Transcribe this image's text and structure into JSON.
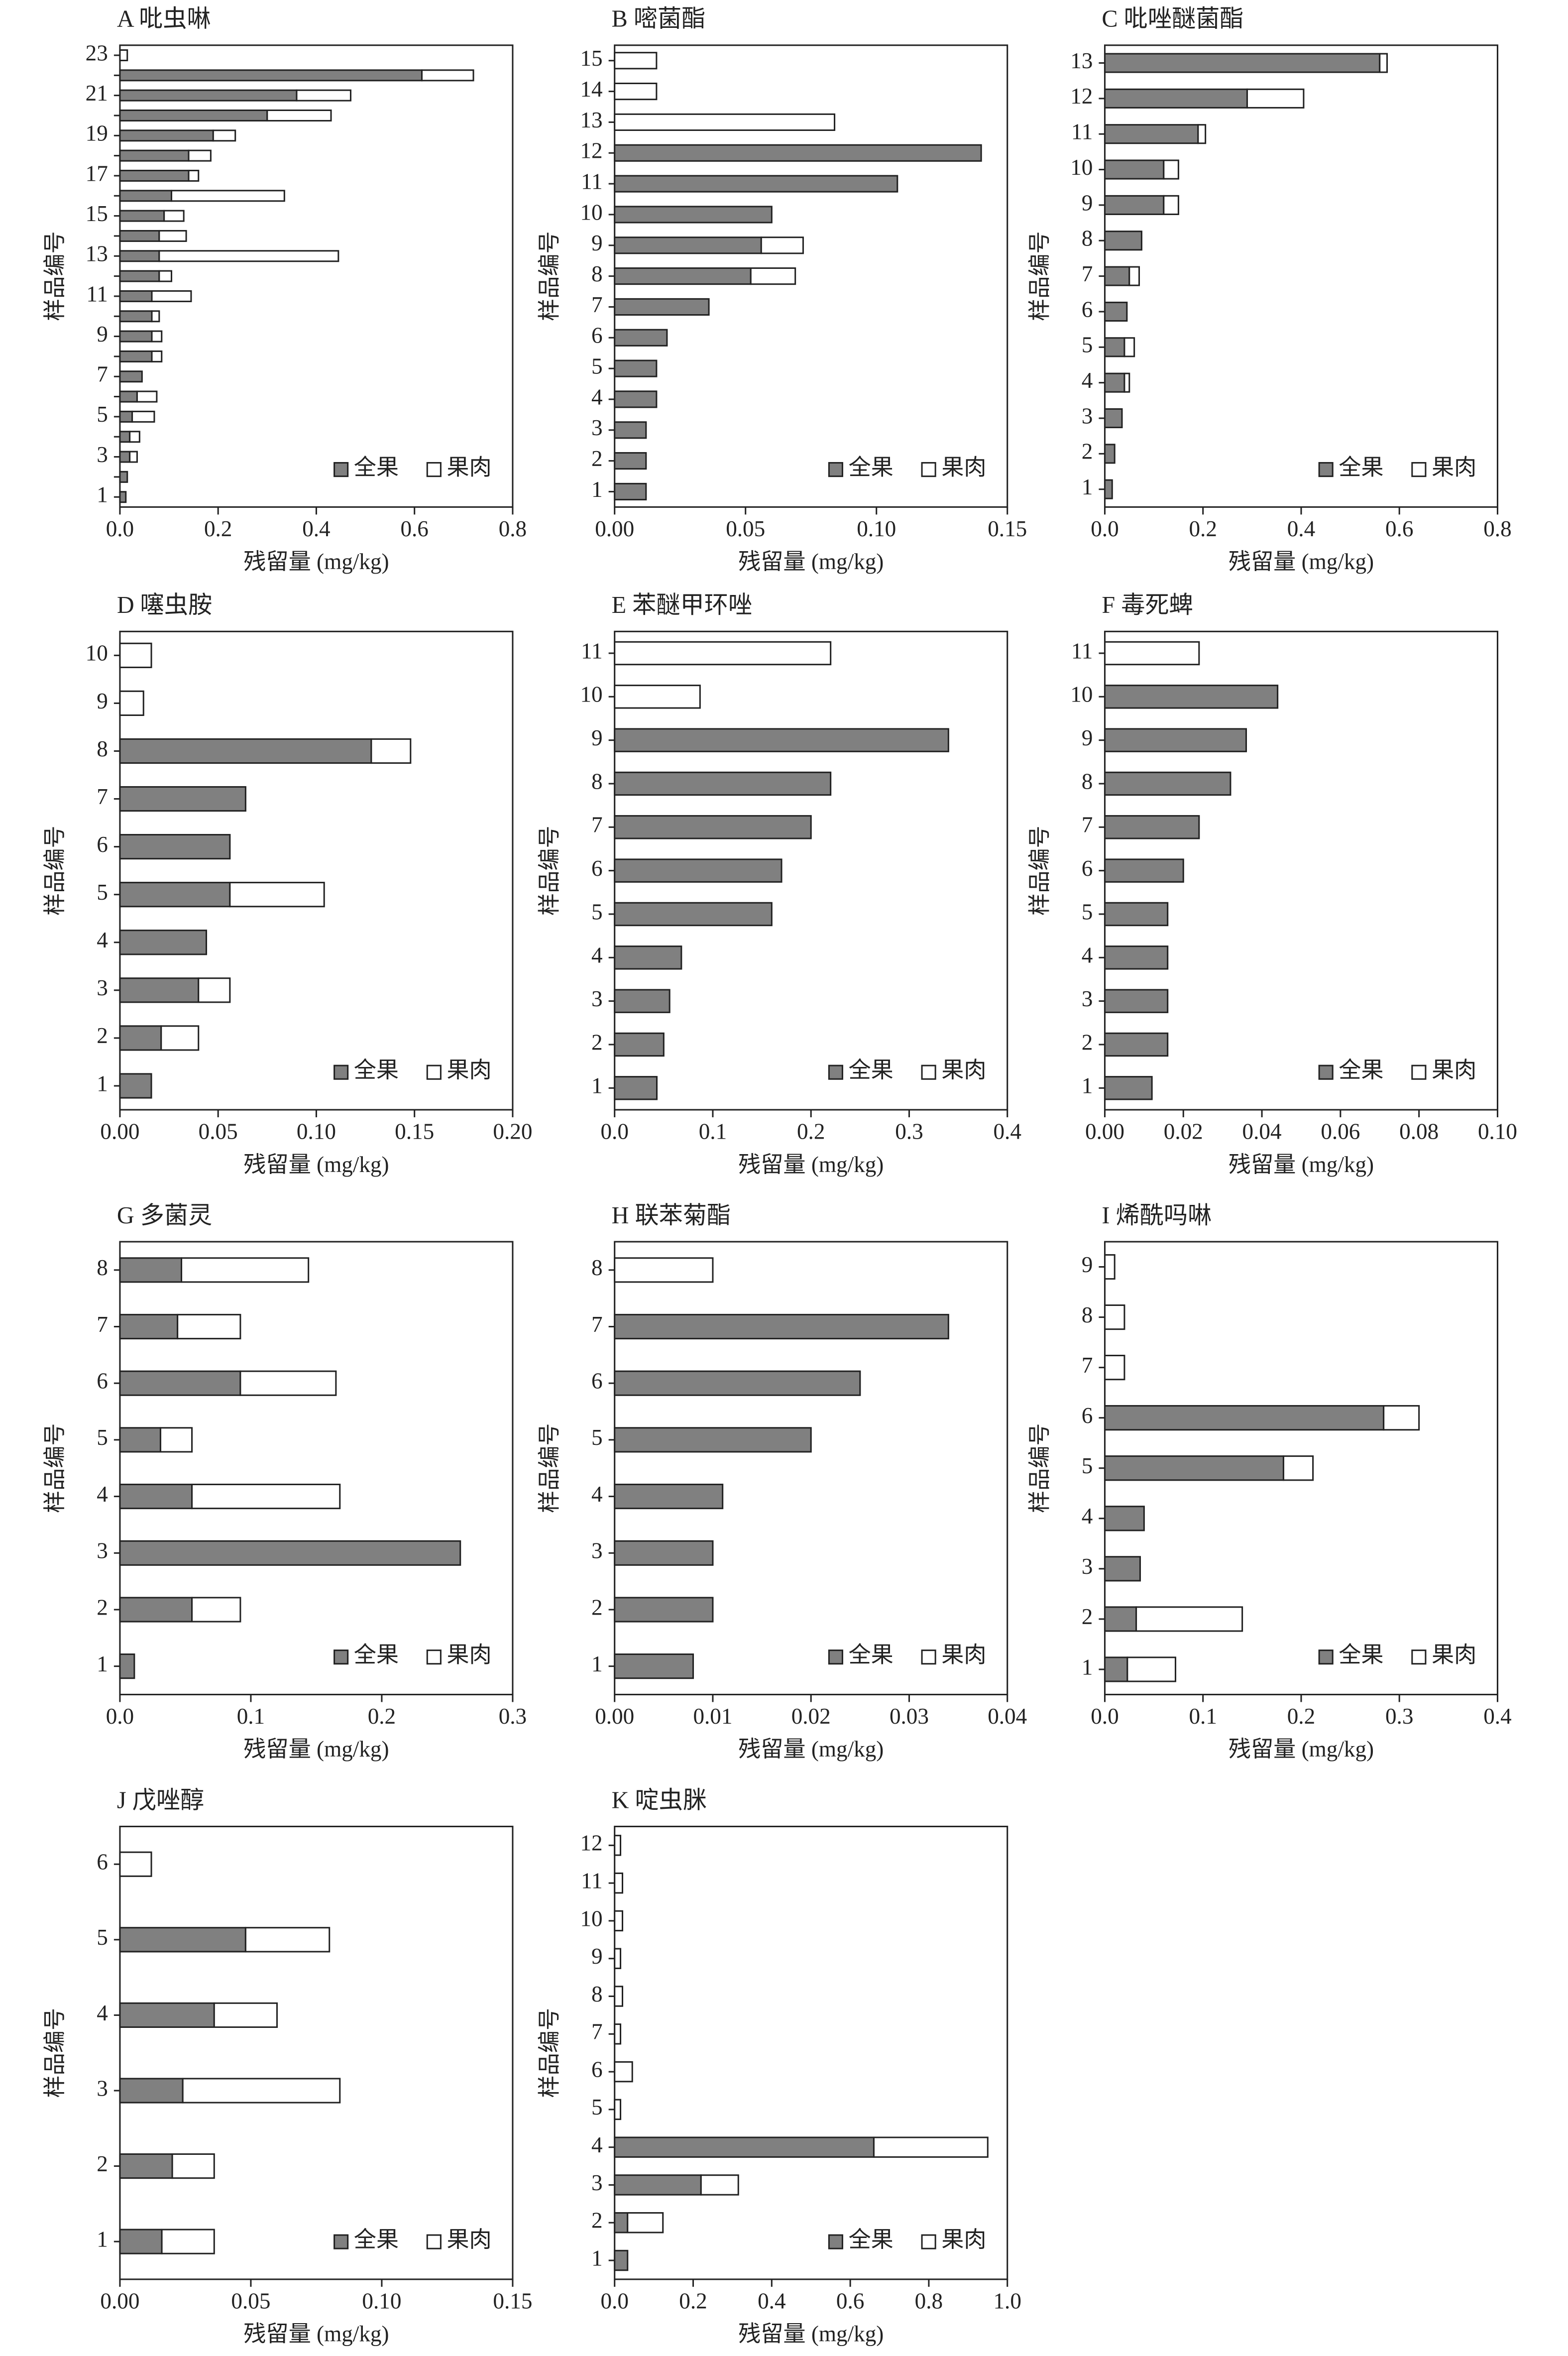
{
  "chart_data": [
    {
      "type": "bar",
      "orientation": "horizontal",
      "stacked": true,
      "legend": "lower right",
      "title": "A 吡虫啉",
      "xlabel": "残留量 (mg/kg)",
      "ylabel": "样品编号",
      "categories": [
        "1",
        null,
        "3",
        null,
        "5",
        null,
        "7",
        null,
        "9",
        null,
        "11",
        null,
        "13",
        null,
        "15",
        null,
        "17",
        null,
        "19",
        null,
        "21",
        null,
        "23"
      ],
      "series": [
        {
          "name": "全果",
          "color": "#808080",
          "values": [
            0.012,
            0.015,
            0.02,
            0.02,
            0.025,
            0.035,
            0.045,
            0.065,
            0.065,
            0.065,
            0.065,
            0.08,
            0.08,
            0.08,
            0.09,
            0.105,
            0.14,
            0.14,
            0.19,
            0.3,
            0.36,
            0.615,
            0
          ]
        },
        {
          "name": "果肉",
          "color": "#ffffff",
          "values": [
            0,
            0,
            0.015,
            0.02,
            0.045,
            0.04,
            0,
            0.02,
            0.02,
            0.015,
            0.08,
            0.025,
            0.365,
            0.055,
            0.04,
            0.23,
            0.02,
            0.045,
            0.045,
            0.13,
            0.11,
            0.105,
            0.015
          ]
        }
      ],
      "xlim": [
        0,
        0.8
      ],
      "xticks": [
        {
          "value": 0,
          "label": "0.0"
        },
        0.2,
        0.4,
        0.6,
        0.8
      ]
    },
    {
      "type": "bar",
      "orientation": "horizontal",
      "stacked": true,
      "legend": "lower right",
      "title": "B 嘧菌酯",
      "xlabel": "残留量 (mg/kg)",
      "ylabel": "样品编号",
      "categories": [
        "1",
        "2",
        "3",
        "4",
        "5",
        "6",
        "7",
        "8",
        "9",
        "10",
        "11",
        "12",
        "13",
        "14",
        "15"
      ],
      "series": [
        {
          "name": "全果",
          "color": "#808080",
          "values": [
            0.012,
            0.012,
            0.012,
            0.016,
            0.016,
            0.02,
            0.036,
            0.052,
            0.056,
            0.06,
            0.108,
            0.14,
            0,
            0,
            0
          ]
        },
        {
          "name": "果肉",
          "color": "#ffffff",
          "values": [
            0,
            0,
            0,
            0,
            0,
            0,
            0,
            0.017,
            0.016,
            0,
            0,
            0,
            0.084,
            0.016,
            0.016
          ]
        }
      ],
      "xlim": [
        0,
        0.15
      ],
      "xticks": [
        {
          "value": 0,
          "label": "0.00"
        },
        0.05,
        {
          "value": 0.1,
          "label": "0.10"
        },
        0.15
      ]
    },
    {
      "type": "bar",
      "orientation": "horizontal",
      "stacked": true,
      "legend": "lower right",
      "title": "C 吡唑醚菌酯",
      "xlabel": "残留量 (mg/kg)",
      "ylabel": "样品编号",
      "categories": [
        "1",
        "2",
        "3",
        "4",
        "5",
        "6",
        "7",
        "8",
        "9",
        "10",
        "11",
        "12",
        "13"
      ],
      "series": [
        {
          "name": "全果",
          "color": "#808080",
          "values": [
            0.015,
            0.02,
            0.035,
            0.04,
            0.04,
            0.045,
            0.05,
            0.075,
            0.12,
            0.12,
            0.19,
            0.29,
            0.56
          ]
        },
        {
          "name": "果肉",
          "color": "#ffffff",
          "values": [
            0,
            0,
            0,
            0.01,
            0.02,
            0,
            0.02,
            0,
            0.03,
            0.03,
            0.015,
            0.115,
            0.015
          ]
        }
      ],
      "xlim": [
        0,
        0.8
      ],
      "xticks": [
        {
          "value": 0,
          "label": "0.0"
        },
        0.2,
        0.4,
        0.6,
        0.8
      ]
    },
    {
      "type": "bar",
      "orientation": "horizontal",
      "stacked": true,
      "legend": "lower right",
      "title": "D 噻虫胺",
      "xlabel": "残留量 (mg/kg)",
      "ylabel": "样品编号",
      "categories": [
        "1",
        "2",
        "3",
        "4",
        "5",
        "6",
        "7",
        "8",
        "9",
        "10"
      ],
      "series": [
        {
          "name": "全果",
          "color": "#808080",
          "values": [
            0.016,
            0.021,
            0.04,
            0.044,
            0.056,
            0.056,
            0.064,
            0.128,
            0,
            0
          ]
        },
        {
          "name": "果肉",
          "color": "#ffffff",
          "values": [
            0,
            0.019,
            0.016,
            0,
            0.048,
            0,
            0,
            0.02,
            0.012,
            0.016
          ]
        }
      ],
      "xlim": [
        0,
        0.2
      ],
      "xticks": [
        {
          "value": 0,
          "label": "0.00"
        },
        0.05,
        {
          "value": 0.1,
          "label": "0.10"
        },
        0.15,
        {
          "value": 0.2,
          "label": "0.20"
        }
      ]
    },
    {
      "type": "bar",
      "orientation": "horizontal",
      "stacked": true,
      "legend": "lower right",
      "title": "E 苯醚甲环唑",
      "xlabel": "残留量 (mg/kg)",
      "ylabel": "样品编号",
      "categories": [
        "1",
        "2",
        "3",
        "4",
        "5",
        "6",
        "7",
        "8",
        "9",
        "10",
        "11"
      ],
      "series": [
        {
          "name": "全果",
          "color": "#808080",
          "values": [
            0.043,
            0.05,
            0.056,
            0.068,
            0.16,
            0.17,
            0.2,
            0.22,
            0.34,
            0,
            0
          ]
        },
        {
          "name": "果肉",
          "color": "#ffffff",
          "values": [
            0,
            0,
            0,
            0,
            0,
            0,
            0,
            0,
            0,
            0.087,
            0.22
          ]
        }
      ],
      "xlim": [
        0,
        0.4
      ],
      "xticks": [
        {
          "value": 0,
          "label": "0.0"
        },
        0.1,
        0.2,
        0.3,
        0.4
      ]
    },
    {
      "type": "bar",
      "orientation": "horizontal",
      "stacked": true,
      "legend": "lower right",
      "title": "F 毒死蜱",
      "xlabel": "残留量 (mg/kg)",
      "ylabel": "样品编号",
      "categories": [
        "1",
        "2",
        "3",
        "4",
        "5",
        "6",
        "7",
        "8",
        "9",
        "10",
        "11"
      ],
      "series": [
        {
          "name": "全果",
          "color": "#808080",
          "values": [
            0.012,
            0.016,
            0.016,
            0.016,
            0.016,
            0.02,
            0.024,
            0.032,
            0.036,
            0.044,
            0
          ]
        },
        {
          "name": "果肉",
          "color": "#ffffff",
          "values": [
            0,
            0,
            0,
            0,
            0,
            0,
            0,
            0,
            0,
            0,
            0.024
          ]
        }
      ],
      "xlim": [
        0,
        0.1
      ],
      "xticks": [
        {
          "value": 0,
          "label": "0.00"
        },
        0.02,
        0.04,
        0.06,
        0.08,
        {
          "value": 0.1,
          "label": "0.10"
        }
      ]
    },
    {
      "type": "bar",
      "orientation": "horizontal",
      "stacked": true,
      "legend": "lower right",
      "title": "G 多菌灵",
      "xlabel": "残留量 (mg/kg)",
      "ylabel": "样品编号",
      "categories": [
        "1",
        "2",
        "3",
        "4",
        "5",
        "6",
        "7",
        "8"
      ],
      "series": [
        {
          "name": "全果",
          "color": "#808080",
          "values": [
            0.011,
            0.055,
            0.26,
            0.055,
            0.031,
            0.092,
            0.044,
            0.047
          ]
        },
        {
          "name": "果肉",
          "color": "#ffffff",
          "values": [
            0,
            0.037,
            0,
            0.113,
            0.024,
            0.073,
            0.048,
            0.097
          ]
        }
      ],
      "xlim": [
        0,
        0.3
      ],
      "xticks": [
        {
          "value": 0,
          "label": "0.0"
        },
        0.1,
        0.2,
        0.3
      ]
    },
    {
      "type": "bar",
      "orientation": "horizontal",
      "stacked": true,
      "legend": "lower right",
      "title": "H 联苯菊酯",
      "xlabel": "残留量 (mg/kg)",
      "ylabel": "样品编号",
      "categories": [
        "1",
        "2",
        "3",
        "4",
        "5",
        "6",
        "7",
        "8"
      ],
      "series": [
        {
          "name": "全果",
          "color": "#808080",
          "values": [
            0.008,
            0.01,
            0.01,
            0.011,
            0.02,
            0.025,
            0.034,
            0
          ]
        },
        {
          "name": "果肉",
          "color": "#ffffff",
          "values": [
            0,
            0,
            0,
            0,
            0,
            0,
            0,
            0.01
          ]
        }
      ],
      "xlim": [
        0,
        0.04
      ],
      "xticks": [
        {
          "value": 0,
          "label": "0.00"
        },
        0.01,
        0.02,
        0.03,
        0.04
      ]
    },
    {
      "type": "bar",
      "orientation": "horizontal",
      "stacked": true,
      "legend": "lower right",
      "title": "I 烯酰吗啉",
      "xlabel": "残留量 (mg/kg)",
      "ylabel": "样品编号",
      "categories": [
        "1",
        "2",
        "3",
        "4",
        "5",
        "6",
        "7",
        "8",
        "9"
      ],
      "series": [
        {
          "name": "全果",
          "color": "#808080",
          "values": [
            0.023,
            0.032,
            0.036,
            0.04,
            0.182,
            0.284,
            0,
            0,
            0
          ]
        },
        {
          "name": "果肉",
          "color": "#ffffff",
          "values": [
            0.049,
            0.108,
            0,
            0,
            0.03,
            0.036,
            0.02,
            0.02,
            0.01
          ]
        }
      ],
      "xlim": [
        0,
        0.4
      ],
      "xticks": [
        {
          "value": 0,
          "label": "0.0"
        },
        0.1,
        0.2,
        0.3,
        0.4
      ]
    },
    {
      "type": "bar",
      "orientation": "horizontal",
      "stacked": true,
      "legend": "lower right",
      "title": "J 戊唑醇",
      "xlabel": "残留量 (mg/kg)",
      "ylabel": "样品编号",
      "categories": [
        "1",
        "2",
        "3",
        "4",
        "5",
        "6"
      ],
      "series": [
        {
          "name": "全果",
          "color": "#808080",
          "values": [
            0.016,
            0.02,
            0.024,
            0.036,
            0.048,
            0
          ]
        },
        {
          "name": "果肉",
          "color": "#ffffff",
          "values": [
            0.02,
            0.016,
            0.06,
            0.024,
            0.032,
            0.012
          ]
        }
      ],
      "xlim": [
        0,
        0.15
      ],
      "xticks": [
        {
          "value": 0,
          "label": "0.00"
        },
        0.05,
        {
          "value": 0.1,
          "label": "0.10"
        },
        0.15
      ]
    },
    {
      "type": "bar",
      "orientation": "horizontal",
      "stacked": true,
      "legend": "lower right",
      "title": "K 啶虫脒",
      "xlabel": "残留量 (mg/kg)",
      "ylabel": "样品编号",
      "categories": [
        "1",
        "2",
        "3",
        "4",
        "5",
        "6",
        "7",
        "8",
        "9",
        "10",
        "11",
        "12"
      ],
      "series": [
        {
          "name": "全果",
          "color": "#808080",
          "values": [
            0.033,
            0.033,
            0.22,
            0.66,
            0,
            0,
            0,
            0,
            0,
            0,
            0,
            0
          ]
        },
        {
          "name": "果肉",
          "color": "#ffffff",
          "values": [
            0,
            0.09,
            0.095,
            0.29,
            0.015,
            0.045,
            0.015,
            0.02,
            0.015,
            0.02,
            0.02,
            0.015
          ]
        }
      ],
      "xlim": [
        0,
        1
      ],
      "xticks": [
        {
          "value": 0,
          "label": "0.0"
        },
        0.2,
        0.4,
        0.6,
        0.8,
        {
          "value": 1,
          "label": "1.0"
        }
      ]
    }
  ]
}
